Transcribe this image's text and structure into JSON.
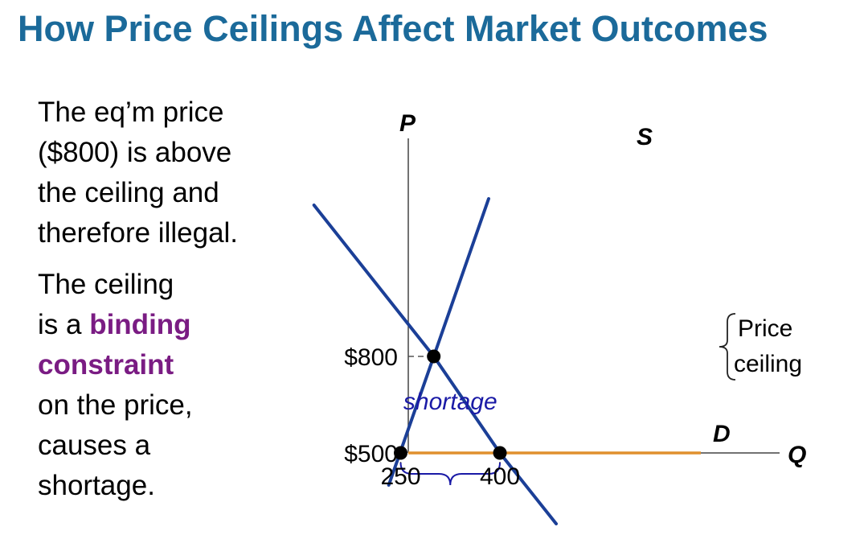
{
  "title": "How Price Ceilings Affect Market Outcomes",
  "text": {
    "para1": [
      "The eq’m price",
      "($800) is above",
      "the ceiling and",
      "therefore illegal."
    ],
    "para2_line1": "The ceiling",
    "para2_line2_prefix": "is a ",
    "para2_line2_bold": "binding",
    "para2_line3_bold": "constraint",
    "para2_rest": [
      "on the price,",
      "causes a",
      "shortage."
    ]
  },
  "colors": {
    "title": "#1b6a9a",
    "curves": "#1b3f97",
    "ceiling": "#e0902e",
    "highlight": "#7a1c83",
    "shortage": "#1a1aa6"
  },
  "chart_data": {
    "type": "line",
    "xlabel": "Q",
    "ylabel": "P",
    "y_ticks": [
      {
        "value": 500,
        "label": "$500"
      },
      {
        "value": 800,
        "label": "$800"
      }
    ],
    "x_ticks": [
      {
        "value": 250,
        "label": "250"
      },
      {
        "value": 400,
        "label": "400"
      }
    ],
    "series": [
      {
        "name": "S",
        "points": [
          [
            232,
            400
          ],
          [
            300,
            800
          ],
          [
            383,
            1290
          ]
        ]
      },
      {
        "name": "D",
        "points": [
          [
            119,
            1270
          ],
          [
            300,
            800
          ],
          [
            400,
            500
          ],
          [
            485,
            280
          ]
        ]
      }
    ],
    "ceiling": {
      "price": 500,
      "label_lines": [
        "Price",
        "ceiling"
      ]
    },
    "equilibrium": {
      "q": 300,
      "p": 800
    },
    "ceiling_points": [
      {
        "q": 250,
        "p": 500
      },
      {
        "q": 400,
        "p": 500
      }
    ],
    "shortage_label": "shortage",
    "grid": false
  }
}
